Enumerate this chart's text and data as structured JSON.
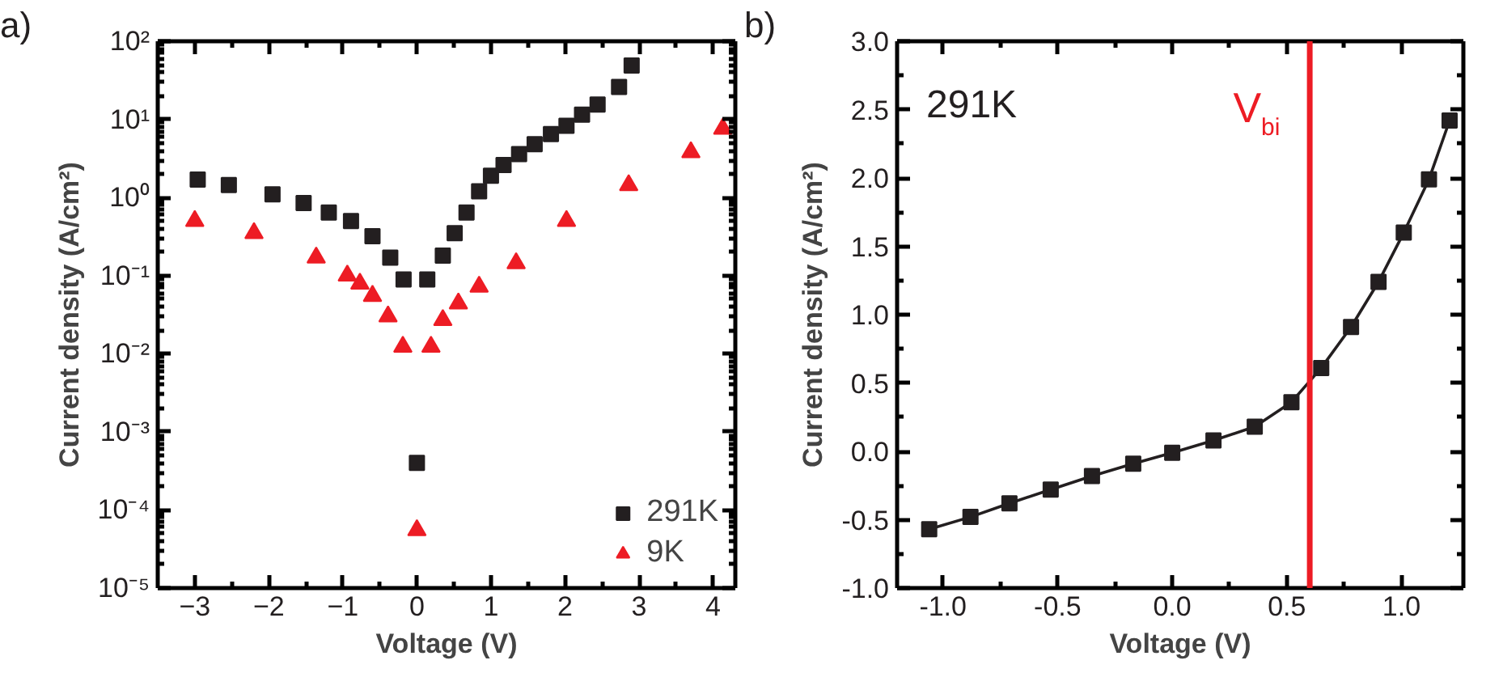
{
  "chart_data": [
    {
      "type": "scatter",
      "xlabel": "Voltage (V)",
      "ylabel": "Current density (A/cm²)",
      "annotations": [
        "a)"
      ],
      "log": "y",
      "xlim": [
        -3.5,
        4.3
      ],
      "ylim": [
        1e-05,
        100
      ],
      "xticks": [
        -3,
        -2,
        -1,
        0,
        1,
        2,
        3,
        4
      ],
      "yticks": [
        {
          "value": 1e-05,
          "label": "10⁻⁵"
        },
        {
          "value": 0.0001,
          "label": "10⁻⁴"
        },
        {
          "value": 0.001,
          "label": "10⁻³"
        },
        {
          "value": 0.01,
          "label": "10⁻²"
        },
        {
          "value": 0.1,
          "label": "10⁻¹"
        },
        {
          "value": 1,
          "label": "10⁰"
        },
        {
          "value": 10,
          "label": "10¹"
        },
        {
          "value": 100,
          "label": "10²"
        }
      ],
      "grid": false,
      "legend": "bottom right",
      "series": [
        {
          "name": "291K",
          "color": "#231f20",
          "marker": "square",
          "x": [
            -2.96,
            -2.54,
            -1.95,
            -1.53,
            -1.19,
            -0.89,
            -0.6,
            -0.36,
            -0.18,
            0,
            0.14,
            0.35,
            0.51,
            0.67,
            0.84,
            1.0,
            1.17,
            1.38,
            1.59,
            1.81,
            2.02,
            2.23,
            2.44,
            2.73,
            2.9
          ],
          "values": [
            1.7,
            1.44,
            1.1,
            0.85,
            0.64,
            0.5,
            0.32,
            0.17,
            0.089,
            0.0004,
            0.089,
            0.18,
            0.35,
            0.64,
            1.2,
            1.9,
            2.6,
            3.6,
            4.8,
            6.5,
            8.3,
            11.5,
            15.5,
            26,
            49
          ]
        },
        {
          "name": "9K",
          "color": "#ed1c24",
          "marker": "triangle",
          "x": [
            -3.0,
            -2.2,
            -1.36,
            -0.94,
            -0.77,
            -0.6,
            -0.39,
            -0.19,
            0,
            0.19,
            0.35,
            0.56,
            0.84,
            1.34,
            2.02,
            2.86,
            3.7,
            4.13
          ],
          "values": [
            0.5,
            0.35,
            0.17,
            0.1,
            0.079,
            0.055,
            0.03,
            0.0123,
            5.5e-05,
            0.0123,
            0.027,
            0.044,
            0.072,
            0.144,
            0.5,
            1.44,
            3.8,
            7.6
          ]
        }
      ]
    },
    {
      "type": "line",
      "xlabel": "Voltage (V)",
      "ylabel": "Current density (A/cm²)",
      "annotations": [
        "b)",
        "291K"
      ],
      "xlim": [
        -1.2,
        1.27
      ],
      "ylim": [
        -1.0,
        3.0
      ],
      "xticks": [
        {
          "value": -1.0,
          "label": "-1.0"
        },
        {
          "value": -0.5,
          "label": "-0.5"
        },
        {
          "value": 0.0,
          "label": "0.0"
        },
        {
          "value": 0.5,
          "label": "0.5"
        },
        {
          "value": 1.0,
          "label": "1.0"
        }
      ],
      "yticks": [
        {
          "value": -1.0,
          "label": "-1.0"
        },
        {
          "value": -0.5,
          "label": "-0.5"
        },
        {
          "value": 0.0,
          "label": "0.0"
        },
        {
          "value": 0.5,
          "label": "0.5"
        },
        {
          "value": 1.0,
          "label": "1.0"
        },
        {
          "value": 1.5,
          "label": "1.5"
        },
        {
          "value": 2.0,
          "label": "2.0"
        },
        {
          "value": 2.5,
          "label": "2.5"
        },
        {
          "value": 3.0,
          "label": "3.0"
        }
      ],
      "grid": false,
      "marker": "square",
      "line_style": "solid",
      "ref_lines": [
        {
          "axis": "x",
          "value": 0.6,
          "label": "V$_{bi}$",
          "color": "#ed1c24",
          "line_style": "solid"
        }
      ],
      "series": [
        {
          "color": "#231f20",
          "x": [
            -1.06,
            -0.88,
            -0.71,
            -0.53,
            -0.35,
            -0.17,
            0.0,
            0.18,
            0.36,
            0.52,
            0.65,
            0.78,
            0.9,
            1.01,
            1.12,
            1.21
          ],
          "values": [
            -0.57,
            -0.48,
            -0.38,
            -0.28,
            -0.18,
            -0.09,
            -0.01,
            0.08,
            0.18,
            0.36,
            0.61,
            0.91,
            1.24,
            1.6,
            1.99,
            2.42
          ]
        }
      ]
    }
  ]
}
